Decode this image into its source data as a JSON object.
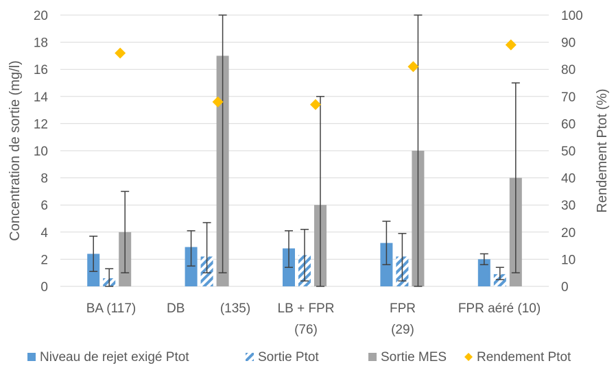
{
  "chart_data": {
    "type": "bar",
    "categories": [
      [
        "BA (117)"
      ],
      [
        "DB",
        "(135)"
      ],
      [
        "LB + FPR",
        "(76)"
      ],
      [
        "FPR",
        "(29)"
      ],
      [
        "FPR aéré (10)"
      ]
    ],
    "y_left": {
      "label": "Concentration de sortie (mg/l)",
      "min": 0,
      "max": 20,
      "step": 2
    },
    "y_right": {
      "label": "Rendement  Ptot (%)",
      "min": 0,
      "max": 100,
      "step": 10
    },
    "grid": true,
    "legend_position": "bottom",
    "series": [
      {
        "name": "Niveau de rejet exigé Ptot",
        "kind": "bar",
        "axis": "left",
        "color": "#5b9bd5",
        "values": [
          2.4,
          2.9,
          2.8,
          3.2,
          2.0
        ],
        "error_low": [
          1.1,
          1.5,
          1.4,
          1.6,
          1.6
        ],
        "error_high": [
          3.7,
          4.1,
          4.1,
          4.8,
          2.4
        ]
      },
      {
        "name": "Sortie Ptot",
        "kind": "bar",
        "pattern": "diagonal-stripes",
        "axis": "left",
        "color": "#5b9bd5",
        "values": [
          0.6,
          2.2,
          2.3,
          2.2,
          0.9
        ],
        "error_low": [
          0.0,
          1.0,
          0.4,
          0.4,
          0.5
        ],
        "error_high": [
          1.3,
          4.7,
          4.2,
          3.9,
          1.4
        ]
      },
      {
        "name": "Sortie MES",
        "kind": "bar",
        "axis": "left",
        "color": "#a5a5a5",
        "values": [
          4.0,
          17.0,
          6.0,
          10.0,
          8.0
        ],
        "error_low": [
          1.0,
          1.0,
          0.0,
          0.0,
          1.0
        ],
        "error_high": [
          7.0,
          20.0,
          14.0,
          20.0,
          15.0
        ]
      },
      {
        "name": "Rendement Ptot",
        "kind": "marker",
        "marker": "diamond",
        "axis": "right",
        "color": "#ffc000",
        "values": [
          86,
          68,
          67,
          81,
          89
        ]
      }
    ]
  }
}
